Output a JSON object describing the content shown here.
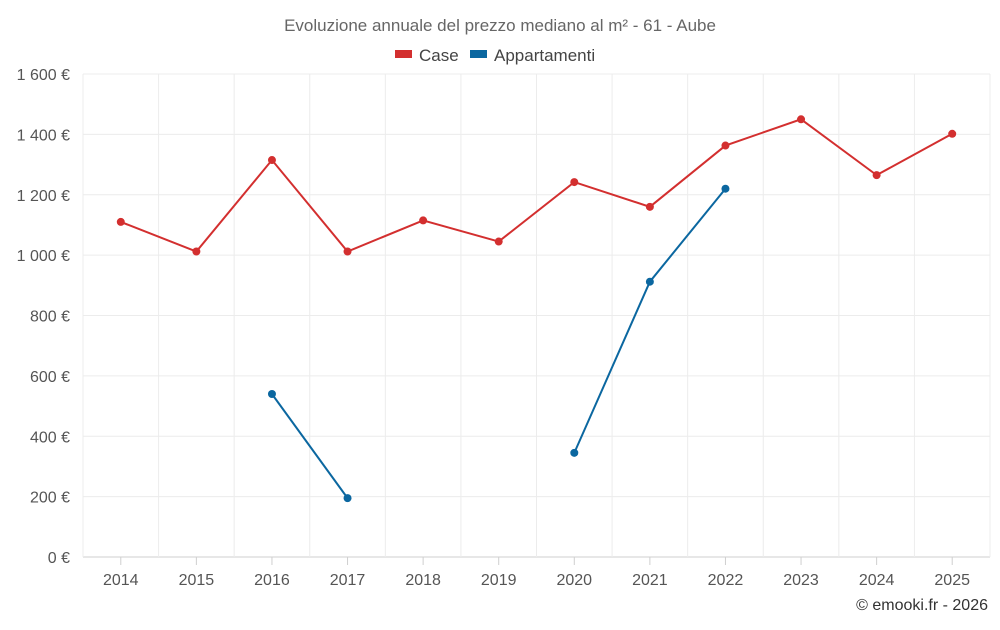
{
  "chart_data": {
    "type": "line",
    "title": "Evoluzione annuale del prezzo mediano al m² - 61 - Aube",
    "categories": [
      "2014",
      "2015",
      "2016",
      "2017",
      "2018",
      "2019",
      "2020",
      "2021",
      "2022",
      "2023",
      "2024",
      "2025"
    ],
    "ylim": [
      0,
      1600
    ],
    "yticks": [
      0,
      200,
      400,
      600,
      800,
      1000,
      1200,
      1400,
      1600
    ],
    "ytick_labels": [
      "0 €",
      "200 €",
      "400 €",
      "600 €",
      "800 €",
      "1 000 €",
      "1 200 €",
      "1 400 €",
      "1 600 €"
    ],
    "xlabel": "",
    "ylabel": "",
    "grid": true,
    "legend_position": "top-center",
    "series": [
      {
        "name": "Case",
        "color": "#d32f2f",
        "values": [
          1110,
          1012,
          1315,
          1012,
          1115,
          1045,
          1242,
          1160,
          1363,
          1450,
          1265,
          1402
        ]
      },
      {
        "name": "Appartamenti",
        "color": "#0b67a0",
        "values": [
          null,
          null,
          540,
          195,
          null,
          null,
          345,
          912,
          1220,
          null,
          null,
          null
        ]
      }
    ]
  },
  "footer": {
    "credit": "© emooki.fr - 2026"
  }
}
